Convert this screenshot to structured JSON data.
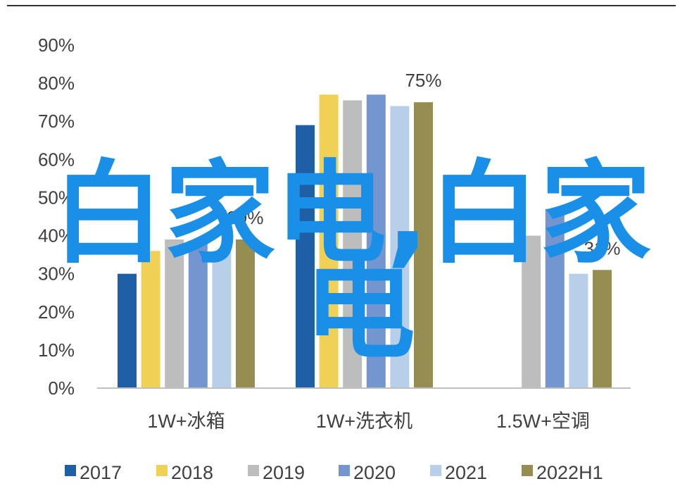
{
  "chart_data": {
    "type": "bar",
    "categories": [
      "1W+冰箱",
      "1W+洗衣机",
      "1.5W+空调"
    ],
    "series": [
      {
        "name": "2017",
        "values": [
          30,
          69,
          null
        ],
        "color": "#1f5fa6"
      },
      {
        "name": "2018",
        "values": [
          36,
          77,
          null
        ],
        "color": "#f0d055"
      },
      {
        "name": "2019",
        "values": [
          39,
          75.5,
          40
        ],
        "color": "#bdbdbd"
      },
      {
        "name": "2020",
        "values": [
          38,
          77,
          47
        ],
        "color": "#7396d0"
      },
      {
        "name": "2021",
        "values": [
          36,
          74,
          30
        ],
        "color": "#b8cfea"
      },
      {
        "name": "2022H1",
        "values": [
          39,
          75,
          31
        ],
        "color": "#968e50"
      }
    ],
    "data_labels": [
      {
        "category_index": 0,
        "series_index": 5,
        "text": "39%"
      },
      {
        "category_index": 1,
        "series_index": 5,
        "text": "75%"
      },
      {
        "category_index": 2,
        "series_index": 5,
        "text": "31%"
      }
    ],
    "ylim": [
      0,
      90
    ],
    "yticks": [
      "0%",
      "10%",
      "20%",
      "30%",
      "40%",
      "50%",
      "60%",
      "70%",
      "80%",
      "90%"
    ],
    "legend_position": "bottom",
    "grid": false
  },
  "overlay": {
    "line1": "白家电,白家",
    "line2": "电"
  }
}
